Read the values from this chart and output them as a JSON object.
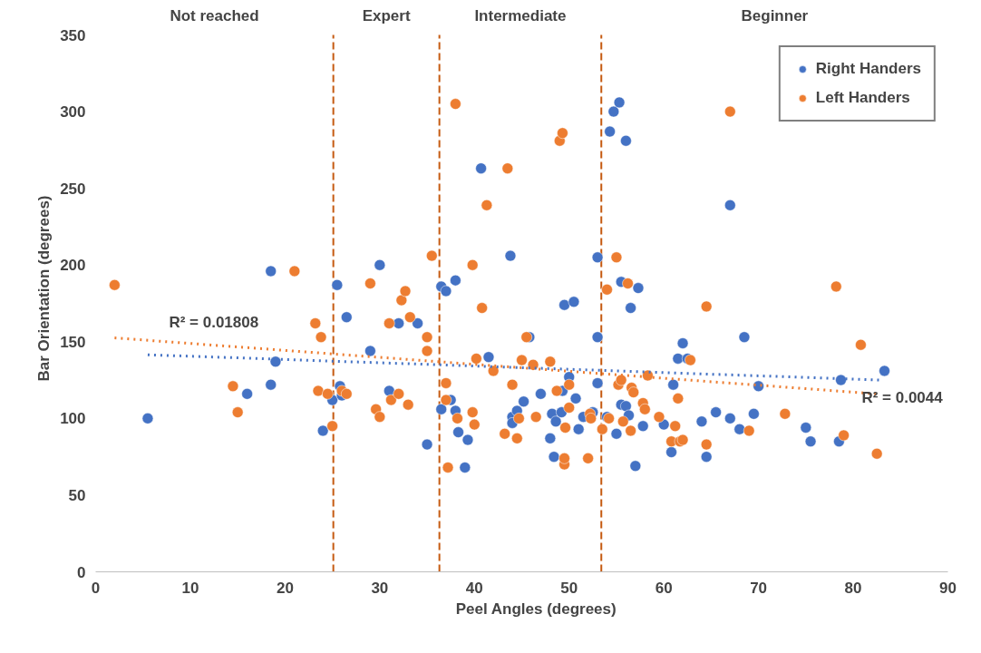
{
  "chart_data": {
    "type": "scatter",
    "xlabel": "Peel Angles (degrees)",
    "ylabel": "Bar Orientation (degrees)",
    "xlim": [
      0,
      90
    ],
    "xticks": [
      0,
      10,
      20,
      30,
      40,
      50,
      60,
      70,
      80,
      90
    ],
    "ylim": [
      0,
      350
    ],
    "yticks": [
      0,
      50,
      100,
      150,
      200,
      250,
      300,
      350
    ],
    "grid": false,
    "legend": "top right",
    "marker": "circle",
    "series": [
      {
        "name": "Right Handers",
        "color": "#4472c4",
        "x": [
          5.5,
          16,
          18.5,
          18.5,
          19,
          24,
          25,
          25.5,
          25.8,
          26,
          26.5,
          29,
          30,
          31,
          32,
          34,
          35,
          36.5,
          36.5,
          37,
          37.5,
          38,
          38,
          38.3,
          39,
          39.3,
          40.7,
          41.5,
          43.8,
          44,
          44,
          44.5,
          45.2,
          45.8,
          47,
          48,
          48.2,
          48.4,
          48.6,
          49.2,
          49.3,
          49.5,
          50,
          50.5,
          50.7,
          51,
          51.5,
          52.5,
          53,
          53,
          53,
          54,
          54.3,
          54.7,
          55,
          55.3,
          55.5,
          55.5,
          56,
          56,
          56.3,
          56.5,
          57,
          57.3,
          57.8,
          60,
          60.8,
          61,
          61.5,
          62,
          62.5,
          64,
          64.5,
          65.5,
          67,
          67,
          68,
          68.5,
          69.5,
          70,
          75,
          75.5,
          78.5,
          78.7,
          83.3
        ],
        "values": [
          100,
          116,
          196,
          122,
          137,
          92,
          112,
          187,
          121,
          115,
          166,
          144,
          200,
          118,
          162,
          162,
          83,
          106,
          186,
          183,
          112,
          190,
          105,
          91,
          68,
          86,
          263,
          140,
          206,
          101,
          97,
          105,
          111,
          153,
          116,
          87,
          103,
          75,
          98,
          104,
          118,
          174,
          127,
          176,
          113,
          93,
          101,
          104,
          205,
          153,
          123,
          101,
          287,
          300,
          90,
          306,
          189,
          109,
          281,
          108,
          102,
          172,
          69,
          185,
          95,
          96,
          78,
          122,
          139,
          149,
          139,
          98,
          75,
          104,
          239,
          100,
          93,
          153,
          103,
          121,
          94,
          85,
          85,
          125,
          131
        ]
      },
      {
        "name": "Left Handers",
        "color": "#ed7d31",
        "x": [
          2,
          14.5,
          15,
          21,
          23.2,
          23.5,
          23.8,
          24.5,
          25,
          26,
          26.5,
          29,
          29.6,
          30,
          31,
          31.2,
          32,
          32.3,
          32.7,
          33,
          33.2,
          35,
          35,
          35.5,
          37,
          37,
          37.2,
          38,
          38.2,
          39.8,
          39.8,
          40,
          40.2,
          40.8,
          41.3,
          42,
          43.2,
          43.5,
          44,
          44.5,
          44.7,
          45,
          45.5,
          46.2,
          46.5,
          48,
          48.7,
          49,
          49.3,
          49.5,
          49.5,
          49.6,
          50,
          50,
          52,
          52.2,
          52.3,
          53.5,
          54,
          54.2,
          55,
          55.2,
          55.5,
          55.7,
          56.2,
          56.5,
          56.6,
          56.8,
          57.8,
          58,
          58.3,
          59.5,
          60.8,
          61.2,
          61.5,
          61.7,
          62,
          62.8,
          64.5,
          64.5,
          67,
          69,
          72.8,
          78.2,
          79,
          80.8,
          82.5
        ],
        "values": [
          187,
          121,
          104,
          196,
          162,
          118,
          153,
          116,
          95,
          118,
          116,
          188,
          106,
          101,
          162,
          112,
          116,
          177,
          183,
          109,
          166,
          153,
          144,
          206,
          123,
          112,
          68,
          305,
          100,
          200,
          104,
          96,
          139,
          172,
          239,
          131,
          90,
          263,
          122,
          87,
          100,
          138,
          153,
          135,
          101,
          137,
          118,
          281,
          286,
          70,
          74,
          94,
          107,
          122,
          74,
          103,
          100,
          93,
          184,
          100,
          205,
          122,
          125,
          98,
          188,
          92,
          120,
          117,
          110,
          106,
          128,
          101,
          85,
          95,
          113,
          85,
          86,
          138,
          173,
          83,
          300,
          92,
          103,
          186,
          89,
          148,
          77
        ]
      },
      {
        "type": "line",
        "marker": "none",
        "line_style": "dotted",
        "color": "#4472c4",
        "x": [
          5.5,
          83
        ],
        "values": [
          141.5,
          125
        ]
      },
      {
        "type": "line",
        "marker": "none",
        "line_style": "dotted",
        "color": "#ed7d31",
        "x": [
          2,
          82.5
        ],
        "values": [
          152.5,
          116
        ]
      }
    ],
    "ref_lines": [
      {
        "axis": "x",
        "value": 25.1,
        "color": "#c55a11",
        "line_style": "dashed"
      },
      {
        "axis": "x",
        "value": 36.3,
        "color": "#c55a11",
        "line_style": "dashed"
      },
      {
        "axis": "x",
        "value": 53.4,
        "color": "#c55a11",
        "line_style": "dashed"
      }
    ],
    "annotations": [
      "Not reached",
      "Expert",
      "Intermediate",
      "Beginner",
      "R² = 0.01808",
      "R² = 0.0044"
    ]
  }
}
